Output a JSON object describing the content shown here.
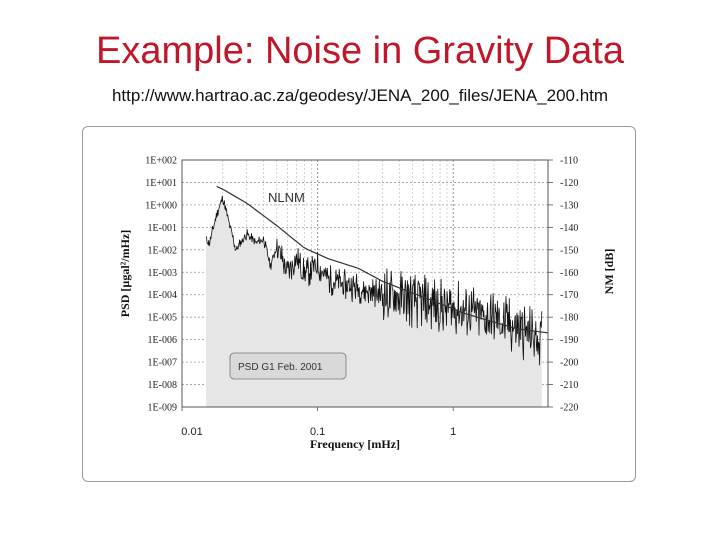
{
  "slide": {
    "title": "Example: Noise in Gravity Data",
    "url": "http://www.hartrao.ac.za/geodesy/JENA_200_files/JENA_200.htm"
  },
  "chart_data": {
    "type": "line",
    "x_scale": "log",
    "xlabel": "Frequency [mHz]",
    "ylabel": "PSD [µgal²/mHz]",
    "y2label": "NM [dB]",
    "xlim": [
      0.01,
      5
    ],
    "ylim": [
      1e-09,
      100
    ],
    "y_scale": "log",
    "y2lim": [
      -220,
      -110
    ],
    "grid": true,
    "x_ticks": [
      "0.01",
      "0.1",
      "1"
    ],
    "y_ticks": [
      "1E+002",
      "1E+001",
      "1E+000",
      "1E-001",
      "1E-002",
      "1E-003",
      "1E-004",
      "1E-005",
      "1E-006",
      "1E-007",
      "1E-008",
      "1E-009"
    ],
    "y2_ticks": [
      "-110",
      "-120",
      "-130",
      "-140",
      "-150",
      "-160",
      "-170",
      "-180",
      "-190",
      "-200",
      "-210",
      "-220"
    ],
    "annotations": [
      {
        "text": "NLNM",
        "x": 0.04,
        "y": 1.5
      },
      {
        "text": "PSD G1 Feb. 2001",
        "x": 0.03,
        "y": 1e-07
      }
    ],
    "series": [
      {
        "name": "NLNM",
        "color": "#333333",
        "x": [
          0.012,
          0.02,
          0.03,
          0.05,
          0.08,
          0.12,
          0.2,
          0.3,
          0.5,
          0.8,
          1.2,
          2,
          3,
          5
        ],
        "y": [
          20,
          5,
          1.2,
          0.12,
          0.012,
          0.004,
          0.0015,
          0.0004,
          0.00012,
          4e-05,
          1.5e-05,
          6e-06,
          3e-06,
          2e-06
        ]
      },
      {
        "name": "PSD G1 Feb. 2001",
        "color": "#111111",
        "fill": "#e6e6e6",
        "x": [
          0.01,
          0.013,
          0.016,
          0.018,
          0.02,
          0.022,
          0.025,
          0.03,
          0.035,
          0.04,
          0.045,
          0.05,
          0.06,
          0.07,
          0.08,
          0.1,
          0.12,
          0.15,
          0.2,
          0.3,
          0.5,
          0.8,
          1.2,
          2,
          3,
          4.5
        ],
        "y": [
          0.8,
          0.08,
          0.02,
          0.4,
          2,
          0.2,
          0.01,
          0.05,
          0.02,
          0.03,
          0.002,
          0.015,
          0.001,
          0.004,
          0.0008,
          0.002,
          0.0005,
          0.0003,
          0.0002,
          0.0001,
          6e-05,
          3e-05,
          2e-05,
          8e-06,
          3e-06,
          1e-06
        ]
      }
    ]
  }
}
